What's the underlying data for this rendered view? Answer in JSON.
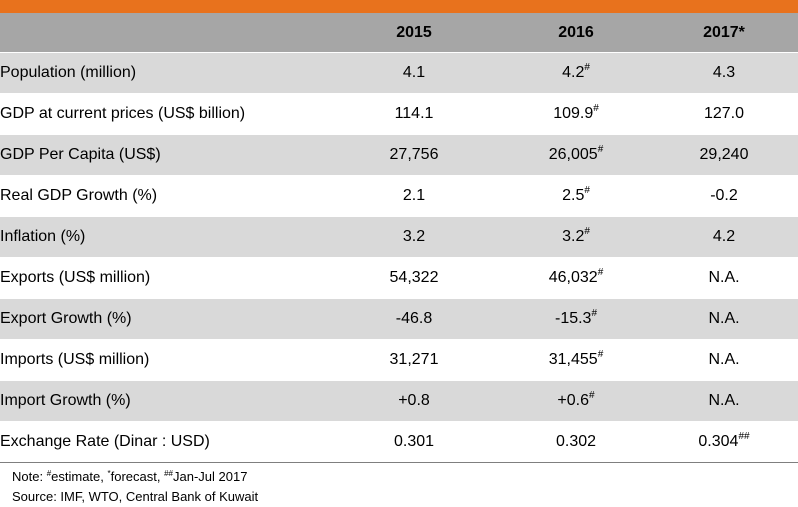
{
  "header": {
    "years": [
      "2015",
      "2016",
      "2017*"
    ]
  },
  "rows": [
    {
      "label": "Population (million)",
      "v2015": "4.1",
      "v2016": "4.2",
      "v2016_mark": "#",
      "v2017": "4.3",
      "v2017_mark": ""
    },
    {
      "label": "GDP at current prices (US$ billion)",
      "v2015": "114.1",
      "v2016": "109.9",
      "v2016_mark": "#",
      "v2017": "127.0",
      "v2017_mark": ""
    },
    {
      "label": "GDP Per Capita (US$)",
      "v2015": "27,756",
      "v2016": "26,005",
      "v2016_mark": "#",
      "v2017": "29,240",
      "v2017_mark": ""
    },
    {
      "label": "Real GDP Growth (%)",
      "v2015": "2.1",
      "v2016": "2.5",
      "v2016_mark": "#",
      "v2017": "-0.2",
      "v2017_mark": ""
    },
    {
      "label": "Inflation (%)",
      "v2015": "3.2",
      "v2016": "3.2",
      "v2016_mark": "#",
      "v2017": "4.2",
      "v2017_mark": ""
    },
    {
      "label": "Exports (US$ million)",
      "v2015": "54,322",
      "v2016": "46,032",
      "v2016_mark": "#",
      "v2017": "N.A.",
      "v2017_mark": ""
    },
    {
      "label": "Export Growth (%)",
      "v2015": "-46.8",
      "v2016": "-15.3",
      "v2016_mark": "#",
      "v2017": "N.A.",
      "v2017_mark": ""
    },
    {
      "label": "Imports (US$ million)",
      "v2015": "31,271",
      "v2016": "31,455",
      "v2016_mark": "#",
      "v2017": "N.A.",
      "v2017_mark": ""
    },
    {
      "label": "Import Growth (%)",
      "v2015": "+0.8",
      "v2016": "+0.6",
      "v2016_mark": "#",
      "v2017": "N.A.",
      "v2017_mark": ""
    },
    {
      "label": "Exchange Rate (Dinar : USD)",
      "v2015": "0.301",
      "v2016": "0.302",
      "v2016_mark": "",
      "v2017": "0.304",
      "v2017_mark": "##"
    }
  ],
  "notes": {
    "line1_prefix": "Note: ",
    "mark1": "#",
    "text1": "estimate, ",
    "mark2": "*",
    "text2": "forecast, ",
    "mark3": "##",
    "text3": "Jan-Jul 2017",
    "source": "Source: IMF, WTO, Central Bank of Kuwait"
  },
  "colors": {
    "top_bar": "#e8721d",
    "header_bg": "#a6a6a6",
    "shaded_row_bg": "#d9d9d9"
  }
}
